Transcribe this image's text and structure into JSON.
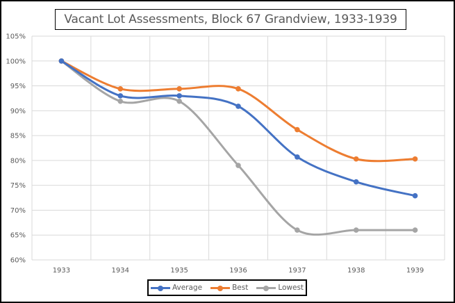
{
  "chart_data": {
    "type": "line",
    "title": "Vacant Lot Assessments,  Block 67 Grandview,  1933-1939",
    "xlabel": "",
    "ylabel": "",
    "categories": [
      "1933",
      "1934",
      "1935",
      "1936",
      "1937",
      "1938",
      "1939"
    ],
    "ylim": [
      0.6,
      1.05
    ],
    "yticks": [
      0.6,
      0.65,
      0.7,
      0.75,
      0.8,
      0.85,
      0.9,
      0.95,
      1.0,
      1.05
    ],
    "ytick_labels": [
      "60%",
      "65%",
      "70%",
      "75%",
      "80%",
      "85%",
      "90%",
      "95%",
      "100%",
      "105%"
    ],
    "grid": true,
    "smoothed": true,
    "legend_position": "bottom",
    "series": [
      {
        "name": "Average",
        "color": "#4472C4",
        "values": [
          1.0,
          0.93,
          0.93,
          0.909,
          0.807,
          0.757,
          0.729
        ]
      },
      {
        "name": "Best",
        "color": "#ED7D31",
        "values": [
          1.0,
          0.944,
          0.944,
          0.944,
          0.862,
          0.803,
          0.803
        ]
      },
      {
        "name": "Lowest",
        "color": "#A5A5A5",
        "values": [
          1.0,
          0.919,
          0.919,
          0.79,
          0.66,
          0.66,
          0.66
        ]
      }
    ]
  }
}
